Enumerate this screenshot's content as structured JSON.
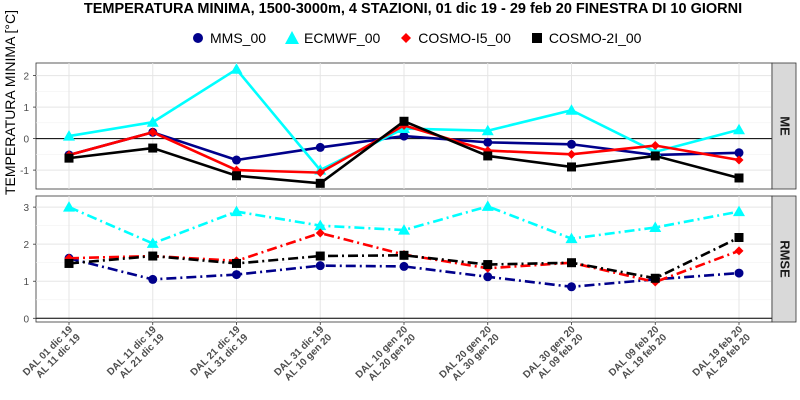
{
  "chart_data": {
    "type": "line",
    "title": "TEMPERATURA MINIMA, 1500-3000m, 4 STAZIONI, 01 dic 19 - 29 feb 20 FINESTRA DI 10 GIORNI",
    "ylabel": "TEMPERATURA MINIMA [°C]",
    "legend_position": "top",
    "grid": true,
    "categories": [
      [
        "DAL 01 dic 19",
        "AL 11 dic 19"
      ],
      [
        "DAL 11 dic 19",
        "AL 21 dic 19"
      ],
      [
        "DAL 21 dic 19",
        "AL 31 dic 19"
      ],
      [
        "DAL 31 dic 19",
        "AL 10 gen 20"
      ],
      [
        "DAL 10 gen 20",
        "AL 20 gen 20"
      ],
      [
        "DAL 20 gen 20",
        "AL 30 gen 20"
      ],
      [
        "DAL 30 gen 20",
        "AL 09 feb 20"
      ],
      [
        "DAL 09 feb 20",
        "AL 19 feb 20"
      ],
      [
        "DAL 19 feb 20",
        "AL 29 feb 20"
      ]
    ],
    "series_meta": [
      {
        "name": "MMS_00",
        "color": "#00008b",
        "marker": "circle"
      },
      {
        "name": "ECMWF_00",
        "color": "#00ffff",
        "marker": "triangle"
      },
      {
        "name": "COSMO-I5_00",
        "color": "#ff0000",
        "marker": "diamond"
      },
      {
        "name": "COSMO-2I_00",
        "color": "#000000",
        "marker": "square"
      }
    ],
    "panels": [
      {
        "label": "ME",
        "ylim": [
          -1.6,
          2.4
        ],
        "yticks": [
          -1,
          0,
          1,
          2
        ],
        "line_style": "solid",
        "values": [
          [
            -0.52,
            0.2,
            -0.68,
            -0.28,
            0.08,
            -0.12,
            -0.18,
            -0.52,
            -0.45
          ],
          [
            0.08,
            0.52,
            2.2,
            -1.0,
            0.32,
            0.25,
            0.9,
            -0.42,
            0.28
          ],
          [
            -0.52,
            0.2,
            -1.0,
            -1.08,
            0.42,
            -0.38,
            -0.5,
            -0.22,
            -0.68
          ],
          [
            -0.62,
            -0.3,
            -1.18,
            -1.42,
            0.55,
            -0.55,
            -0.9,
            -0.55,
            -1.25
          ]
        ]
      },
      {
        "label": "RMSE",
        "ylim": [
          -0.1,
          3.3
        ],
        "yticks": [
          0,
          1,
          2,
          3
        ],
        "line_style": "dashdot",
        "values": [
          [
            1.62,
            1.05,
            1.18,
            1.42,
            1.4,
            1.12,
            0.85,
            1.05,
            1.22
          ],
          [
            3.0,
            2.02,
            2.88,
            2.5,
            2.38,
            3.02,
            2.15,
            2.45,
            2.88
          ],
          [
            1.62,
            1.68,
            1.55,
            2.3,
            1.72,
            1.35,
            1.5,
            0.98,
            1.82
          ],
          [
            1.48,
            1.68,
            1.48,
            1.68,
            1.7,
            1.45,
            1.5,
            1.08,
            2.18
          ]
        ]
      }
    ]
  }
}
